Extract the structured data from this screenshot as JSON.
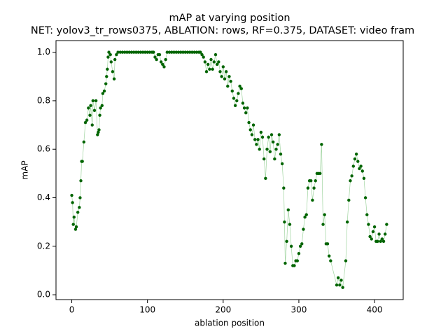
{
  "chart_data": {
    "type": "scatter_line",
    "title": "mAP at varying position",
    "subtitle": "NET: yolov3_tr_rows0375, ABLATION: rows, RF=0.375, DATASET: video fram",
    "x_label": "ablation position",
    "y_label": "mAP",
    "color": "#006400",
    "line_color": "#9fd49f",
    "xlim": [
      -20.85,
      437.85
    ],
    "xticks": [
      0,
      100,
      200,
      300,
      400
    ],
    "ylim": [
      -0.02,
      1.048
    ],
    "yticks": [
      {
        "value": 0,
        "label": "0.0"
      },
      0.2,
      0.4,
      0.6,
      0.8,
      {
        "value": 1,
        "label": "1.0"
      }
    ],
    "x": [
      0,
      1,
      2,
      3,
      5,
      6,
      8,
      10,
      11,
      12,
      13,
      14,
      16,
      18,
      20,
      22,
      24,
      25,
      27,
      28,
      30,
      32,
      34,
      35,
      36,
      37,
      38,
      40,
      41,
      43,
      45,
      46,
      47,
      48,
      49,
      51,
      52,
      54,
      56,
      57,
      59,
      61,
      64,
      67,
      70,
      73,
      76,
      79,
      82,
      85,
      88,
      91,
      94,
      97,
      100,
      103,
      106,
      108,
      110,
      112,
      114,
      116,
      118,
      120,
      122,
      124,
      126,
      129,
      132,
      135,
      138,
      141,
      144,
      147,
      150,
      153,
      156,
      159,
      162,
      165,
      168,
      170,
      172,
      174,
      176,
      178,
      180,
      182,
      184,
      186,
      188,
      190,
      192,
      194,
      196,
      198,
      200,
      202,
      204,
      206,
      208,
      210,
      212,
      214,
      216,
      218,
      220,
      222,
      224,
      226,
      228,
      230,
      232,
      234,
      236,
      238,
      240,
      242,
      244,
      246,
      248,
      250,
      252,
      254,
      256,
      258,
      260,
      262,
      264,
      266,
      268,
      270,
      272,
      274,
      276,
      278,
      280,
      281,
      282,
      284,
      286,
      288,
      290,
      292,
      294,
      296,
      298,
      300,
      302,
      304,
      306,
      308,
      310,
      312,
      314,
      316,
      318,
      320,
      322,
      324,
      326,
      328,
      330,
      332,
      334,
      336,
      338,
      340,
      342,
      350,
      352,
      354,
      356,
      358,
      362,
      364,
      366,
      368,
      370,
      372,
      374,
      376,
      378,
      380,
      382,
      384,
      386,
      388,
      390,
      392,
      394,
      396,
      398,
      400,
      402,
      404,
      406,
      408,
      410,
      412,
      414,
      416
    ],
    "values": [
      0.41,
      0.38,
      0.29,
      0.32,
      0.27,
      0.28,
      0.34,
      0.36,
      0.4,
      0.47,
      0.55,
      0.55,
      0.63,
      0.71,
      0.72,
      0.77,
      0.74,
      0.78,
      0.7,
      0.8,
      0.76,
      0.8,
      0.66,
      0.67,
      0.68,
      0.74,
      0.77,
      0.78,
      0.83,
      0.84,
      0.87,
      0.9,
      0.93,
      0.98,
      1.0,
      0.99,
      0.96,
      0.92,
      0.89,
      0.97,
      0.99,
      1,
      1,
      1,
      1,
      1,
      1,
      1,
      1,
      1,
      1,
      1,
      1,
      1,
      1,
      1,
      1,
      1,
      0.98,
      0.97,
      0.99,
      0.99,
      0.96,
      0.95,
      0.94,
      0.97,
      1,
      1,
      1,
      1,
      1,
      1,
      1,
      1,
      1,
      1,
      1,
      1,
      1,
      1,
      1,
      1,
      0.99,
      0.98,
      0.96,
      0.92,
      0.95,
      0.93,
      0.97,
      0.93,
      0.96,
      0.99,
      0.95,
      0.96,
      0.92,
      0.9,
      0.94,
      0.89,
      0.92,
      0.86,
      0.9,
      0.88,
      0.84,
      0.81,
      0.78,
      0.8,
      0.83,
      0.86,
      0.85,
      0.79,
      0.77,
      0.75,
      0.77,
      0.71,
      0.68,
      0.66,
      0.7,
      0.64,
      0.62,
      0.64,
      0.6,
      0.67,
      0.65,
      0.56,
      0.48,
      0.6,
      0.65,
      0.59,
      0.66,
      0.63,
      0.56,
      0.6,
      0.62,
      0.66,
      0.58,
      0.54,
      0.44,
      0.3,
      0.13,
      0.22,
      0.35,
      0.29,
      0.2,
      0.12,
      0.12,
      0.14,
      0.14,
      0.17,
      0.2,
      0.21,
      0.27,
      0.32,
      0.33,
      0.44,
      0.47,
      0.47,
      0.39,
      0.44,
      0.47,
      0.5,
      0.5,
      0.5,
      0.62,
      0.29,
      0.33,
      0.21,
      0.21,
      0.16,
      0.14,
      0.04,
      0.07,
      0.04,
      0.06,
      0.03,
      0.14,
      0.3,
      0.39,
      0.47,
      0.49,
      0.53,
      0.56,
      0.58,
      0.55,
      0.52,
      0.53,
      0.51,
      0.48,
      0.4,
      0.33,
      0.29,
      0.24,
      0.23,
      0.26,
      0.28,
      0.22,
      0.22,
      0.25,
      0.22,
      0.23,
      0.22,
      0.25,
      0.29
    ]
  }
}
